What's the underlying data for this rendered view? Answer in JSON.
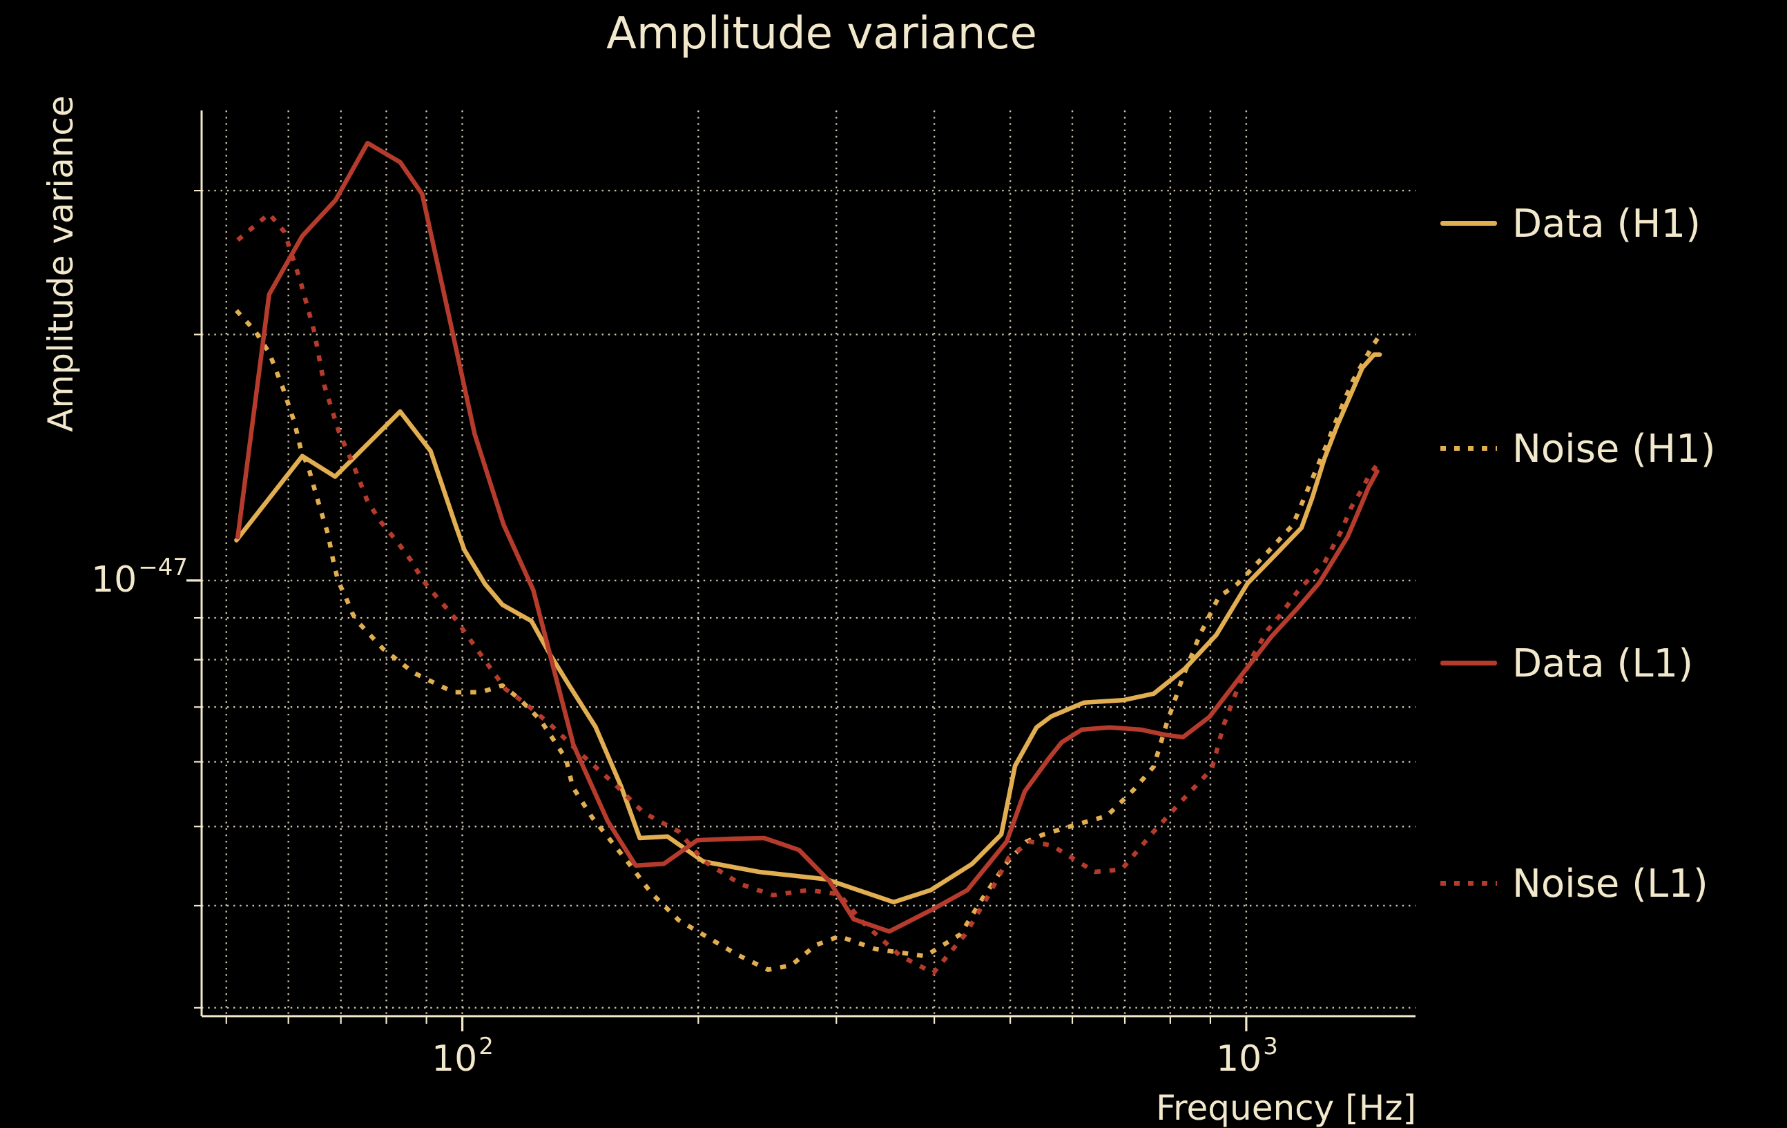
{
  "title": "Amplitude variance",
  "colors": {
    "background": "#000000",
    "text": "#F2E8CC",
    "grid": "#EFE6C9",
    "gold": "#E2AE52",
    "red": "#B53B2C"
  },
  "ticks": {
    "x": [
      {
        "base": "10",
        "exp": "2"
      },
      {
        "base": "10",
        "exp": "3"
      }
    ],
    "y": [
      {
        "base": "10",
        "exp": "−47"
      }
    ]
  },
  "legend": {
    "entries": [
      {
        "label": "Data (H1)",
        "series": 0
      },
      {
        "label": "Noise (H1)",
        "series": 1
      },
      {
        "label": "Data (L1)",
        "series": 2
      },
      {
        "label": "Noise (L1)",
        "series": 3
      }
    ]
  },
  "chart_data": {
    "type": "line",
    "title": "Amplitude variance",
    "xlabel": "Frequency [Hz]",
    "ylabel": "Amplitude variance",
    "x_scale": "log",
    "y_scale": "log",
    "xlim": [
      46.5,
      1644
    ],
    "ylim": [
      2.93e-48,
      3.76e-47
    ],
    "grid": true,
    "legend_position": "right",
    "x_ticks_major": [
      100,
      1000
    ],
    "x_ticks_minor": [
      50,
      60,
      70,
      80,
      90,
      200,
      300,
      400,
      500,
      600,
      700,
      800,
      900
    ],
    "y_ticks_major": [
      1e-47
    ],
    "y_ticks_minor": [
      3e-48,
      4e-48,
      5e-48,
      6e-48,
      7e-48,
      8e-48,
      9e-48,
      2e-47,
      3e-47
    ],
    "series": [
      {
        "name": "Data (H1)",
        "color": "#E2AE52",
        "style": "solid",
        "points": [
          [
            51.5,
            1.12e-47
          ],
          [
            62.5,
            1.42e-47
          ],
          [
            68.8,
            1.34e-47
          ],
          [
            83.3,
            1.61e-47
          ],
          [
            91.1,
            1.44e-47
          ],
          [
            98.0,
            1.17e-47
          ],
          [
            100.6,
            1.09e-47
          ],
          [
            106.9,
            9.9e-48
          ],
          [
            112.5,
            9.34e-48
          ],
          [
            122.5,
            8.92e-48
          ],
          [
            129.4,
            8.12e-48
          ],
          [
            136.9,
            7.44e-48
          ],
          [
            147.9,
            6.62e-48
          ],
          [
            159.5,
            5.59e-48
          ],
          [
            168.4,
            4.84e-48
          ],
          [
            182.7,
            4.86e-48
          ],
          [
            203,
            4.53e-48
          ],
          [
            239,
            4.4e-48
          ],
          [
            291,
            4.31e-48
          ],
          [
            355,
            4.04e-48
          ],
          [
            396,
            4.18e-48
          ],
          [
            447,
            4.5e-48
          ],
          [
            487,
            4.89e-48
          ],
          [
            507,
            5.93e-48
          ],
          [
            540,
            6.61e-48
          ],
          [
            564,
            6.82e-48
          ],
          [
            621,
            7.09e-48
          ],
          [
            698,
            7.14e-48
          ],
          [
            762,
            7.27e-48
          ],
          [
            835,
            7.8e-48
          ],
          [
            916,
            8.58e-48
          ],
          [
            1004,
            9.92e-48
          ],
          [
            1084,
            1.07e-47
          ],
          [
            1176,
            1.16e-47
          ],
          [
            1213,
            1.26e-47
          ],
          [
            1258,
            1.41e-47
          ],
          [
            1307,
            1.55e-47
          ],
          [
            1356,
            1.68e-47
          ],
          [
            1406,
            1.82e-47
          ],
          [
            1456,
            1.89e-47
          ],
          [
            1480,
            1.89e-47
          ]
        ]
      },
      {
        "name": "Noise (H1)",
        "color": "#E2AE52",
        "style": "dotted",
        "points": [
          [
            51.5,
            2.14e-47
          ],
          [
            54.4,
            2.02e-47
          ],
          [
            56.7,
            1.9e-47
          ],
          [
            58.9,
            1.73e-47
          ],
          [
            61.1,
            1.56e-47
          ],
          [
            62.2,
            1.45e-47
          ],
          [
            63.7,
            1.37e-47
          ],
          [
            65.0,
            1.28e-47
          ],
          [
            66.3,
            1.2e-47
          ],
          [
            67.4,
            1.14e-47
          ],
          [
            68.4,
            1.06e-47
          ],
          [
            69.4,
            1e-47
          ],
          [
            71.3,
            9.45e-48
          ],
          [
            72.5,
            9.09e-48
          ],
          [
            73.4,
            8.92e-48
          ],
          [
            79.2,
            8.25e-48
          ],
          [
            86.7,
            7.71e-48
          ],
          [
            97.4,
            7.3e-48
          ],
          [
            105.6,
            7.3e-48
          ],
          [
            112.5,
            7.44e-48
          ],
          [
            118.3,
            7.16e-48
          ],
          [
            125.8,
            6.75e-48
          ],
          [
            130.2,
            6.42e-48
          ],
          [
            135.6,
            6.05e-48
          ],
          [
            138.3,
            5.59e-48
          ],
          [
            146.4,
            5.13e-48
          ],
          [
            162.7,
            4.52e-48
          ],
          [
            174,
            4.15e-48
          ],
          [
            188.8,
            3.84e-48
          ],
          [
            223.5,
            3.49e-48
          ],
          [
            245.4,
            3.34e-48
          ],
          [
            262.6,
            3.38e-48
          ],
          [
            282.5,
            3.58e-48
          ],
          [
            302.6,
            3.67e-48
          ],
          [
            336.6,
            3.54e-48
          ],
          [
            389.3,
            3.47e-48
          ],
          [
            432.1,
            3.69e-48
          ],
          [
            459.9,
            4.07e-48
          ],
          [
            493.5,
            4.5e-48
          ],
          [
            524.1,
            4.79e-48
          ],
          [
            551.4,
            4.89e-48
          ],
          [
            604.3,
            5.02e-48
          ],
          [
            664,
            5.15e-48
          ],
          [
            719.1,
            5.55e-48
          ],
          [
            762.1,
            5.92e-48
          ],
          [
            790.6,
            6.66e-48
          ],
          [
            830.2,
            7.62e-48
          ],
          [
            872.7,
            8.58e-48
          ],
          [
            922,
            9.54e-48
          ],
          [
            976.2,
            9.92e-48
          ],
          [
            1062,
            1.08e-47
          ],
          [
            1147,
            1.17e-47
          ],
          [
            1213,
            1.33e-47
          ],
          [
            1264,
            1.46e-47
          ],
          [
            1316,
            1.61e-47
          ],
          [
            1365,
            1.75e-47
          ],
          [
            1419,
            1.87e-47
          ],
          [
            1456,
            1.95e-47
          ],
          [
            1472,
            1.98e-47
          ]
        ]
      },
      {
        "name": "Data (L1)",
        "color": "#B53B2C",
        "style": "solid",
        "points": [
          [
            51.7,
            1.13e-47
          ],
          [
            56.7,
            2.24e-47
          ],
          [
            62.5,
            2.64e-47
          ],
          [
            68.9,
            2.92e-47
          ],
          [
            75.7,
            3.43e-47
          ],
          [
            83.3,
            3.25e-47
          ],
          [
            88.9,
            2.97e-47
          ],
          [
            97.4,
            1.99e-47
          ],
          [
            103.7,
            1.51e-47
          ],
          [
            112.9,
            1.17e-47
          ],
          [
            123.2,
            9.73e-48
          ],
          [
            138.6,
            6.29e-48
          ],
          [
            153.2,
            5.08e-48
          ],
          [
            166.4,
            4.48e-48
          ],
          [
            180.7,
            4.5e-48
          ],
          [
            199.3,
            4.81e-48
          ],
          [
            220.8,
            4.83e-48
          ],
          [
            242.7,
            4.84e-48
          ],
          [
            268.8,
            4.68e-48
          ],
          [
            293.7,
            4.29e-48
          ],
          [
            315.7,
            3.85e-48
          ],
          [
            350.4,
            3.72e-48
          ],
          [
            400.2,
            3.97e-48
          ],
          [
            440.8,
            4.18e-48
          ],
          [
            494.6,
            4.79e-48
          ],
          [
            521.7,
            5.52e-48
          ],
          [
            559.4,
            6.05e-48
          ],
          [
            581.6,
            6.34e-48
          ],
          [
            616.9,
            6.57e-48
          ],
          [
            669.2,
            6.61e-48
          ],
          [
            733.6,
            6.57e-48
          ],
          [
            790.1,
            6.47e-48
          ],
          [
            830.2,
            6.43e-48
          ],
          [
            897.5,
            6.81e-48
          ],
          [
            986.3,
            7.66e-48
          ],
          [
            1076,
            8.53e-48
          ],
          [
            1165,
            9.27e-48
          ],
          [
            1240,
            9.94e-48
          ],
          [
            1346,
            1.13e-47
          ],
          [
            1388,
            1.21e-47
          ],
          [
            1432,
            1.3e-47
          ],
          [
            1469,
            1.36e-47
          ]
        ]
      },
      {
        "name": "Noise (L1)",
        "color": "#B53B2C",
        "style": "dotted",
        "points": [
          [
            51.7,
            2.61e-47
          ],
          [
            56.7,
            2.81e-47
          ],
          [
            59.3,
            2.67e-47
          ],
          [
            62.1,
            2.33e-47
          ],
          [
            64.7,
            2.02e-47
          ],
          [
            66.7,
            1.73e-47
          ],
          [
            69.6,
            1.52e-47
          ],
          [
            72.5,
            1.39e-47
          ],
          [
            75.7,
            1.25e-47
          ],
          [
            78.7,
            1.18e-47
          ],
          [
            82.9,
            1.11e-47
          ],
          [
            85.9,
            1.06e-47
          ],
          [
            89.1,
            1e-47
          ],
          [
            92.8,
            9.54e-48
          ],
          [
            97.0,
            9.09e-48
          ],
          [
            102,
            8.5e-48
          ],
          [
            107.8,
            7.89e-48
          ],
          [
            113.6,
            7.36e-48
          ],
          [
            120,
            7.09e-48
          ],
          [
            129.4,
            6.67e-48
          ],
          [
            141.2,
            6.15e-48
          ],
          [
            156.9,
            5.62e-48
          ],
          [
            170.2,
            5.2e-48
          ],
          [
            188.8,
            4.93e-48
          ],
          [
            203,
            4.54e-48
          ],
          [
            226.5,
            4.25e-48
          ],
          [
            249.2,
            4.12e-48
          ],
          [
            276.6,
            4.18e-48
          ],
          [
            302.6,
            4.13e-48
          ],
          [
            324.7,
            3.81e-48
          ],
          [
            362.4,
            3.47e-48
          ],
          [
            398.9,
            3.31e-48
          ],
          [
            438.1,
            3.69e-48
          ],
          [
            468.6,
            4.11e-48
          ],
          [
            497.8,
            4.58e-48
          ],
          [
            529.6,
            4.79e-48
          ],
          [
            564.9,
            4.74e-48
          ],
          [
            640.9,
            4.4e-48
          ],
          [
            693.3,
            4.43e-48
          ],
          [
            762.1,
            4.93e-48
          ],
          [
            831.2,
            5.4e-48
          ],
          [
            903.6,
            5.88e-48
          ],
          [
            936,
            6.66e-48
          ],
          [
            976.2,
            7.4e-48
          ],
          [
            1021,
            8.11e-48
          ],
          [
            1066,
            8.71e-48
          ],
          [
            1105,
            9.07e-48
          ],
          [
            1166,
            9.73e-48
          ],
          [
            1257,
            1.05e-47
          ],
          [
            1322,
            1.15e-47
          ],
          [
            1362,
            1.23e-47
          ],
          [
            1403,
            1.29e-47
          ],
          [
            1432,
            1.34e-47
          ],
          [
            1472,
            1.39e-47
          ]
        ]
      }
    ]
  }
}
